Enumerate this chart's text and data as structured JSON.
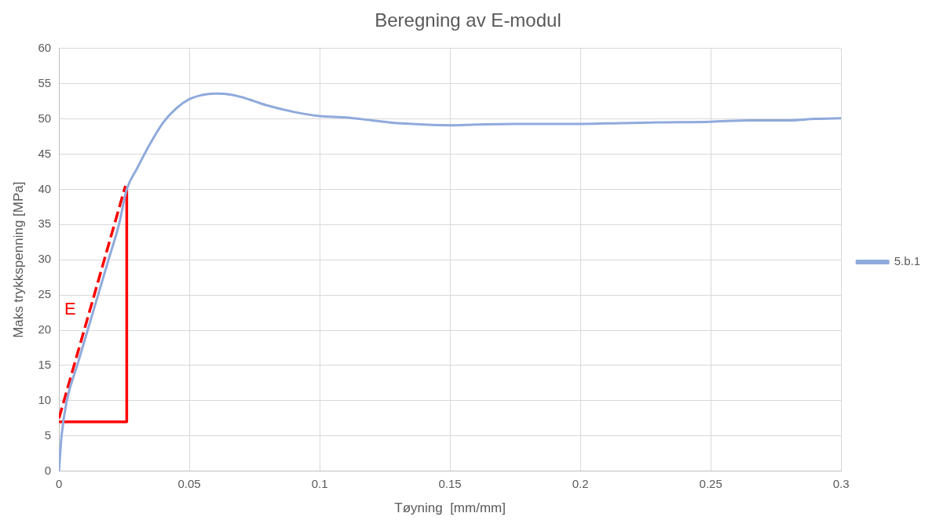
{
  "chart_data": {
    "type": "line",
    "title": "Beregning av E-modul",
    "xlabel": "Tøyning  [mm/mm]",
    "ylabel": "Maks trykkspenning [MPa]",
    "xlim": [
      0,
      0.3
    ],
    "xticks": [
      0,
      0.05,
      0.1,
      0.15,
      0.2,
      0.25,
      0.3
    ],
    "ylim": [
      0,
      60
    ],
    "yticks": [
      0,
      5,
      10,
      15,
      20,
      25,
      30,
      35,
      40,
      45,
      50,
      55,
      60
    ],
    "grid": true,
    "legend": "right",
    "marker": "none",
    "annotations": [
      "E"
    ],
    "series": [
      {
        "name": "5.b.1",
        "color": "#8faadc",
        "x": [
          0,
          0.001,
          0.003,
          0.007,
          0.011,
          0.015,
          0.019,
          0.023,
          0.026,
          0.03,
          0.035,
          0.04,
          0.045,
          0.05,
          0.055,
          0.06,
          0.065,
          0.07,
          0.075,
          0.08,
          0.09,
          0.1,
          0.11,
          0.12,
          0.13,
          0.14,
          0.15,
          0.16,
          0.175,
          0.19,
          0.2,
          0.215,
          0.23,
          0.25,
          0.265,
          0.28,
          0.29,
          0.3
        ],
        "values": [
          0,
          5,
          10,
          15,
          20,
          25,
          30,
          35,
          40,
          43,
          46.5,
          49.5,
          51.5,
          52.8,
          53.4,
          53.6,
          53.5,
          53.1,
          52.5,
          51.9,
          51,
          50.4,
          50.2,
          49.8,
          49.4,
          49.2,
          49.1,
          49.2,
          49.3,
          49.3,
          49.3,
          49.4,
          49.5,
          49.6,
          49.8,
          49.8,
          50,
          50.1
        ]
      },
      {
        "type": "line",
        "color": "#ff0000",
        "line_style": "dashed",
        "x": [
          0,
          0.0255
        ],
        "values": [
          7.5,
          40.5
        ]
      },
      {
        "type": "line",
        "color": "#ff0000",
        "line_style": "solid",
        "x": [
          0,
          0.026,
          0.026
        ],
        "values": [
          7,
          7,
          40
        ]
      }
    ]
  }
}
